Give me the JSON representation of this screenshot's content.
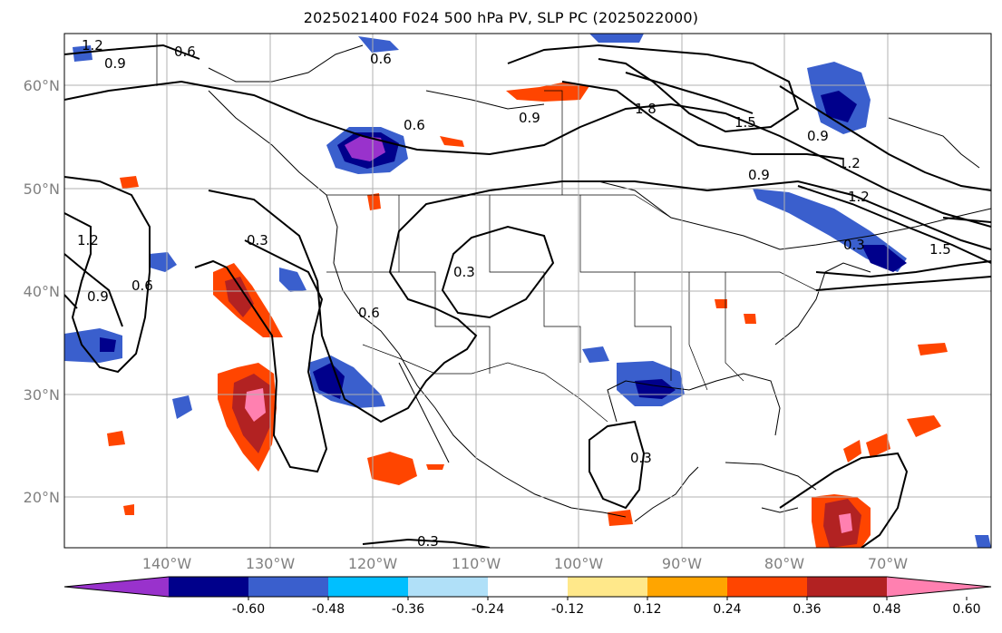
{
  "title": "2025021400 F024 500 hPa PV, SLP PC (2025022000)",
  "lat_labels": [
    "60°N",
    "50°N",
    "40°N",
    "30°N",
    "20°N"
  ],
  "lon_labels": [
    "140°W",
    "130°W",
    "120°W",
    "110°W",
    "100°W",
    "90°W",
    "80°W",
    "70°W"
  ],
  "colorbar": {
    "ticks": [
      "-0.60",
      "-0.48",
      "-0.36",
      "-0.24",
      "-0.12",
      "0.12",
      "0.24",
      "0.36",
      "0.48",
      "0.60"
    ],
    "colors": [
      "#9932cc",
      "#00008b",
      "#3a5fcd",
      "#00bfff",
      "#b0e0f8",
      "#ffffff",
      "#ffe88a",
      "#ffa500",
      "#ff4500",
      "#b22222",
      "#ff80b0"
    ]
  },
  "contour_labels": [
    "1.2",
    "0.9",
    "0.6",
    "0.6",
    "0.9",
    "1.8",
    "1.5",
    "0.9",
    "1.2",
    "0.9",
    "1.2",
    "1.5",
    "0.3",
    "0.3",
    "0.6",
    "0.6",
    "0.9",
    "1.2",
    "0.6",
    "0.3",
    "0.3",
    "0.3"
  ]
}
